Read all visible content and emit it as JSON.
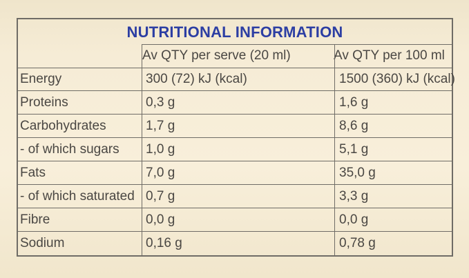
{
  "title": "NUTRITIONAL INFORMATION",
  "columns": {
    "per_serve": "Av QTY per serve (20 ml)",
    "per_100": "Av QTY per 100 ml"
  },
  "rows": [
    {
      "name": "Energy",
      "per_serve": "300 (72) kJ (kcal)",
      "per_100": "1500 (360) kJ (kcal)"
    },
    {
      "name": "Proteins",
      "per_serve": "0,3   g",
      "per_100": "1,6   g"
    },
    {
      "name": "Carbohydrates",
      "per_serve": "1,7   g",
      "per_100": "8,6   g"
    },
    {
      "name": "- of which sugars",
      "per_serve": "1,0   g",
      "per_100": "5,1   g"
    },
    {
      "name": "Fats",
      "per_serve": "7,0   g",
      "per_100": "35,0  g"
    },
    {
      "name": "- of which saturated",
      "per_serve": "0,7   g",
      "per_100": "3,3   g"
    },
    {
      "name": "Fibre",
      "per_serve": "0,0   g",
      "per_100": "0,0   g"
    },
    {
      "name": "Sodium",
      "per_serve": "0,16  g",
      "per_100": "0,78  g"
    }
  ]
}
